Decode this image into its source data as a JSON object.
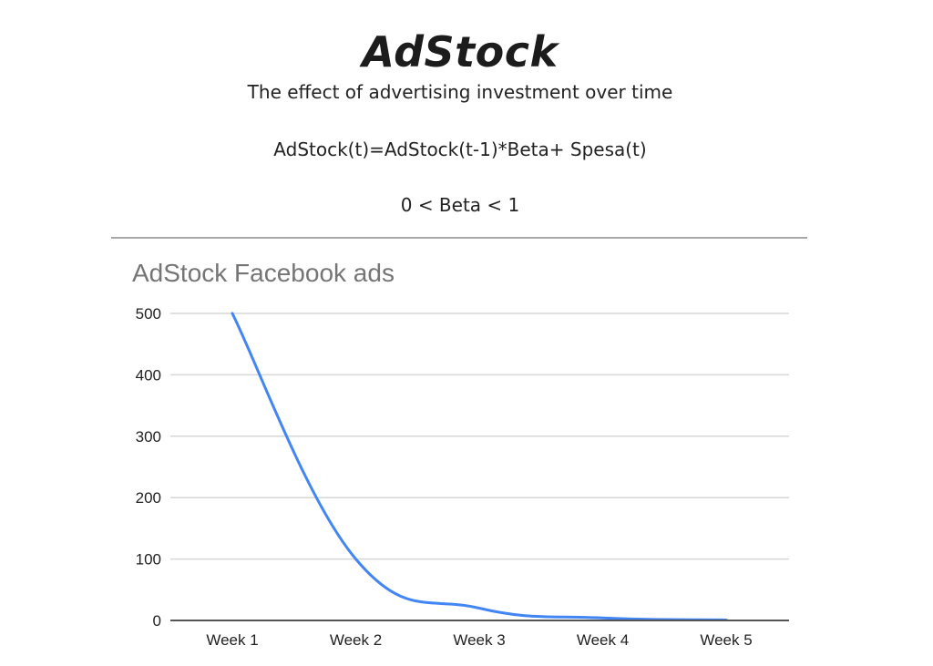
{
  "header": {
    "title": "AdStock",
    "subtitle": "The effect of advertising investment over time",
    "formula": "AdStock(t)=AdStock(t-1)*Beta+ Spesa(t)",
    "constraint": "0 < Beta < 1"
  },
  "chart_data": {
    "type": "line",
    "title": "AdStock Facebook ads",
    "categories": [
      "Week 1",
      "Week 2",
      "Week 3",
      "Week 4",
      "Week 5"
    ],
    "series": [
      {
        "name": "AdStock",
        "values": [
          500,
          100,
          20,
          4,
          0.8
        ],
        "color": "#4285f4"
      }
    ],
    "xlabel": "",
    "ylabel": "",
    "yticks": [
      "0",
      "100",
      "200",
      "300",
      "400",
      "500"
    ],
    "ylim": [
      0,
      500
    ],
    "grid": true,
    "legend": "none",
    "smooth": true
  }
}
